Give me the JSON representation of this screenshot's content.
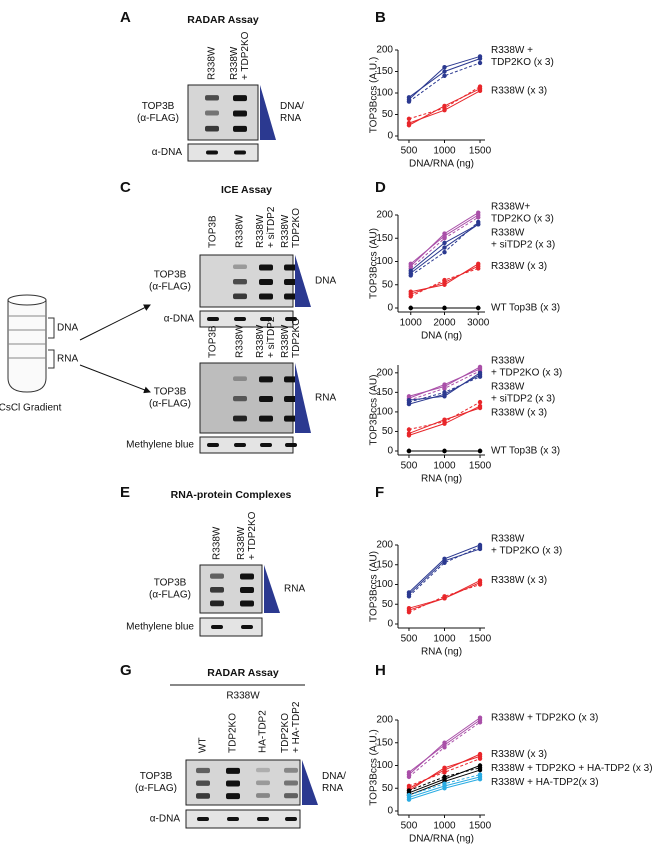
{
  "blots": [
    {
      "letter": "A",
      "title": "RADAR Assay",
      "lanes": [
        {
          "label": [
            "R338W"
          ],
          "color": "#e8262a"
        },
        {
          "label": [
            "R338W",
            "+ TDP2KO"
          ],
          "color": "#2b3990"
        }
      ],
      "rows": [
        [
          "TOP3B",
          "(α-FLAG)"
        ],
        [
          "α-DNA"
        ]
      ],
      "gradient": [
        "DNA/",
        "RNA"
      ]
    },
    {
      "letter": "C",
      "title": "ICE Assay",
      "lanes": [
        {
          "label": [
            "TOP3B"
          ],
          "color": "#000000"
        },
        {
          "label": [
            "R338W"
          ],
          "color": "#e8262a"
        },
        {
          "label": [
            "R338W",
            "+ siTDP2"
          ],
          "color": "#2b3990"
        },
        {
          "label": [
            "R338W",
            "TDP2KO"
          ],
          "color": "#7b2a8f"
        }
      ],
      "rows": [
        [
          "TOP3B",
          "(α-FLAG)"
        ],
        [
          "α-DNA"
        ]
      ],
      "gradient": [
        "DNA"
      ]
    },
    {
      "lanes": [
        {
          "label": [
            "TOP3B"
          ],
          "color": "#000000"
        },
        {
          "label": [
            "R338W"
          ],
          "color": "#e8262a"
        },
        {
          "label": [
            "R338W",
            "+ siTDP2"
          ],
          "color": "#2b3990"
        },
        {
          "label": [
            "R338W",
            "TDP2KO"
          ],
          "color": "#7b2a8f"
        }
      ],
      "rows": [
        [
          "TOP3B",
          "(α-FLAG)"
        ],
        [
          "Methylene blue"
        ]
      ],
      "gradient": [
        "RNA"
      ]
    },
    {
      "letter": "E",
      "title": "RNA-protein Complexes",
      "lanes": [
        {
          "label": [
            "R338W"
          ],
          "color": "#e8262a"
        },
        {
          "label": [
            "R338W",
            "+ TDP2KO"
          ],
          "color": "#2b3990"
        }
      ],
      "rows": [
        [
          "TOP3B",
          "(α-FLAG)"
        ],
        [
          "Methylene blue"
        ]
      ],
      "gradient": [
        "RNA"
      ]
    },
    {
      "letter": "G",
      "title": "RADAR Assay",
      "group": "R338W",
      "lanes": [
        {
          "label": [
            "WT"
          ],
          "color": "#e8262a"
        },
        {
          "label": [
            "TDP2KO"
          ],
          "color": "#7b2a8f"
        },
        {
          "label": [
            "HA-TDP2"
          ],
          "color": "#29abe2"
        },
        {
          "label": [
            "TDP2KO",
            "+ HA-TDP2"
          ],
          "color": "#000000"
        }
      ],
      "rows": [
        [
          "TOP3B",
          "(α-FLAG)"
        ],
        [
          "α-DNA"
        ]
      ],
      "gradient": [
        "DNA/",
        "RNA"
      ]
    }
  ],
  "gradient_tube": {
    "fractions": [
      "DNA",
      "RNA"
    ],
    "caption": "CsCl Gradient"
  },
  "chart_data": [
    {
      "type": "line",
      "letter": "B",
      "x": [
        500,
        1000,
        1500
      ],
      "xlim": [
        430,
        1570
      ],
      "xticks": [
        500,
        1000,
        1500
      ],
      "ylim": [
        0,
        200
      ],
      "yticks": [
        0,
        50,
        100,
        150,
        200
      ],
      "xlabel": "DNA/RNA (ng)",
      "ylabel": "TOP3Bccs (A.U.)",
      "series": [
        {
          "name": [
            "R338W +",
            "TDP2KO (x 3)"
          ],
          "color": "#2b3990",
          "replicates": [
            [
              85,
              160,
              185
            ],
            [
              80,
              140,
              170
            ],
            [
              90,
              150,
              180
            ]
          ]
        },
        {
          "name": "R338W (x 3)",
          "color": "#e8262a",
          "replicates": [
            [
              30,
              60,
              105
            ],
            [
              40,
              65,
              115
            ],
            [
              25,
              70,
              110
            ]
          ]
        }
      ]
    },
    {
      "type": "line",
      "letter": "D",
      "x": [
        1000,
        2000,
        3000
      ],
      "xlim": [
        800,
        3200
      ],
      "xticks": [
        1000,
        2000,
        3000
      ],
      "ylim": [
        0,
        200
      ],
      "yticks": [
        0,
        50,
        100,
        150,
        200
      ],
      "xlabel": "DNA (ng)",
      "ylabel": "TOP3Bccs (AU)",
      "series": [
        {
          "name": [
            "R338W+",
            "TDP2KO (x 3)"
          ],
          "color": "#a94fa8",
          "replicates": [
            [
              90,
              160,
              205
            ],
            [
              85,
              150,
              195
            ],
            [
              95,
              155,
              200
            ]
          ]
        },
        {
          "name": [
            "R338W",
            "+ siTDP2 (x 3)"
          ],
          "color": "#2b3990",
          "replicates": [
            [
              75,
              130,
              180
            ],
            [
              70,
              120,
              185
            ],
            [
              80,
              140,
              180
            ]
          ]
        },
        {
          "name": "R338W (x 3)",
          "color": "#e8262a",
          "replicates": [
            [
              30,
              55,
              90
            ],
            [
              25,
              60,
              85
            ],
            [
              35,
              50,
              95
            ]
          ]
        },
        {
          "name": "WT Top3B (x 3)",
          "color": "#000000",
          "replicates": [
            [
              0,
              0,
              0
            ],
            [
              0,
              0,
              0
            ],
            [
              0,
              0,
              0
            ]
          ]
        }
      ]
    },
    {
      "type": "line",
      "x": [
        500,
        1000,
        1500
      ],
      "xlim": [
        430,
        1570
      ],
      "xticks": [
        500,
        1000,
        1500
      ],
      "ylim": [
        0,
        220
      ],
      "yticks": [
        0,
        50,
        100,
        150,
        200
      ],
      "xlabel": "RNA (ng)",
      "ylabel": "TOP3Bccs (AU)",
      "series": [
        {
          "name": [
            "R338W",
            "+ TDP2KO (x 3)"
          ],
          "color": "#a94fa8",
          "replicates": [
            [
              140,
              165,
              215
            ],
            [
              130,
              160,
              205
            ],
            [
              135,
              170,
              210
            ]
          ]
        },
        {
          "name": [
            "R338W",
            "+ siTDP2 (x 3)"
          ],
          "color": "#2b3990",
          "replicates": [
            [
              120,
              145,
              195
            ],
            [
              125,
              150,
              190
            ],
            [
              130,
              140,
              200
            ]
          ]
        },
        {
          "name": "R338W (x 3)",
          "color": "#e8262a",
          "replicates": [
            [
              45,
              80,
              110
            ],
            [
              55,
              75,
              125
            ],
            [
              40,
              70,
              115
            ]
          ]
        },
        {
          "name": "WT Top3B (x 3)",
          "color": "#000000",
          "replicates": [
            [
              0,
              0,
              0
            ],
            [
              0,
              0,
              0
            ],
            [
              0,
              0,
              0
            ]
          ]
        }
      ]
    },
    {
      "type": "line",
      "letter": "F",
      "x": [
        500,
        1000,
        1500
      ],
      "xlim": [
        430,
        1570
      ],
      "xticks": [
        500,
        1000,
        1500
      ],
      "ylim": [
        0,
        200
      ],
      "yticks": [
        0,
        50,
        100,
        150,
        200
      ],
      "xlabel": "RNA (ng)",
      "ylabel": "TOP3Bccs (AU)",
      "series": [
        {
          "name": [
            "R338W",
            "+ TDP2KO (x 3)"
          ],
          "color": "#2b3990",
          "replicates": [
            [
              80,
              165,
              200
            ],
            [
              70,
              155,
              195
            ],
            [
              75,
              160,
              190
            ]
          ]
        },
        {
          "name": "R338W (x 3)",
          "color": "#e8262a",
          "replicates": [
            [
              35,
              65,
              110
            ],
            [
              30,
              70,
              100
            ],
            [
              40,
              65,
              105
            ]
          ]
        }
      ]
    },
    {
      "type": "line",
      "letter": "H",
      "x": [
        500,
        1000,
        1500
      ],
      "xlim": [
        430,
        1570
      ],
      "xticks": [
        500,
        1000,
        1500
      ],
      "ylim": [
        0,
        200
      ],
      "yticks": [
        0,
        50,
        100,
        150,
        200
      ],
      "xlabel": "DNA/RNA (ng)",
      "ylabel": "TOP3Bccs (A.U.)",
      "series": [
        {
          "name": "R338W + TDP2KO (x 3)",
          "color": "#a94fa8",
          "replicates": [
            [
              80,
              150,
              205
            ],
            [
              75,
              140,
              195
            ],
            [
              85,
              145,
              200
            ]
          ]
        },
        {
          "name": "R338W (x 3)",
          "color": "#e8262a",
          "replicates": [
            [
              50,
              90,
              125
            ],
            [
              55,
              85,
              115
            ],
            [
              45,
              95,
              120
            ]
          ]
        },
        {
          "name": "R338W + TDP2KO + HA-TDP2 (x 3)",
          "color": "#000000",
          "replicates": [
            [
              40,
              70,
              100
            ],
            [
              45,
              75,
              95
            ],
            [
              35,
              65,
              90
            ]
          ]
        },
        {
          "name": "R338W + HA-TDP2(x 3)",
          "color": "#29abe2",
          "replicates": [
            [
              30,
              55,
              75
            ],
            [
              35,
              60,
              80
            ],
            [
              25,
              50,
              70
            ]
          ]
        }
      ]
    }
  ]
}
